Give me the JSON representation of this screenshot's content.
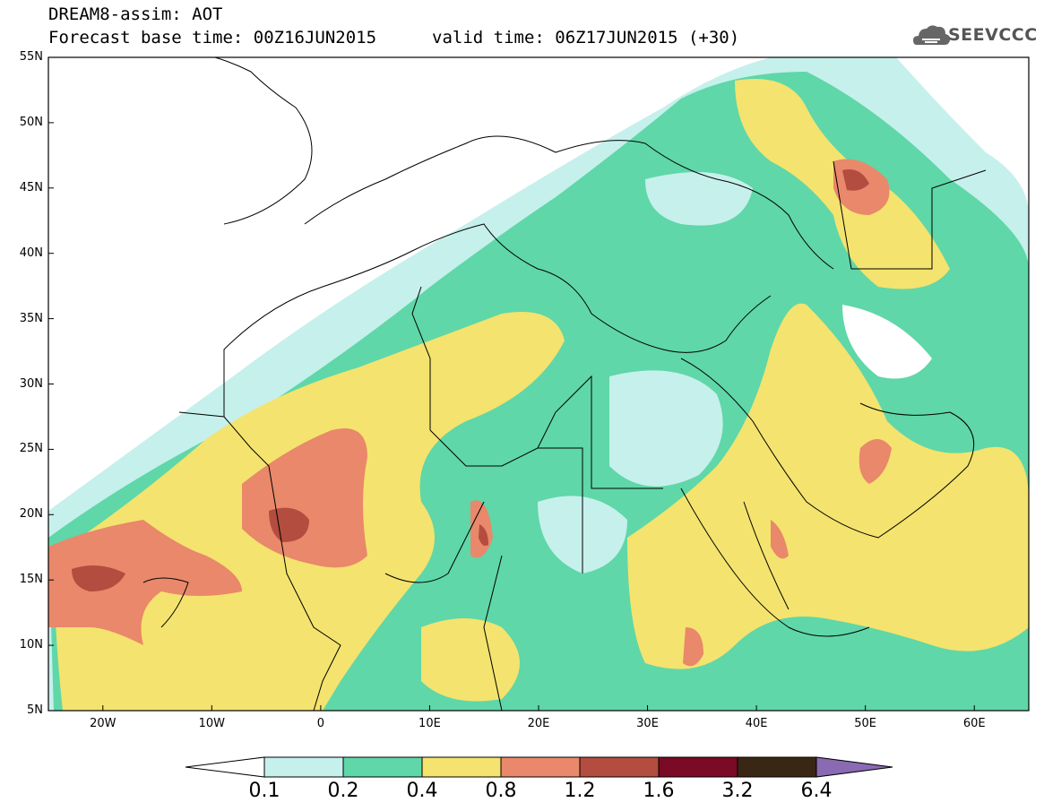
{
  "header": {
    "title": "DREAM8-assim: AOT",
    "base_time": "Forecast base time: 00Z16JUN2015",
    "valid_time": "valid time: 06Z17JUN2015 (+30)",
    "logo_text": "SEEVCCC"
  },
  "map": {
    "lat_labels": [
      "55N",
      "50N",
      "45N",
      "40N",
      "35N",
      "30N",
      "25N",
      "20N",
      "15N",
      "10N",
      "5N"
    ],
    "lon_labels": [
      "20W",
      "10W",
      "0",
      "10E",
      "20E",
      "30E",
      "40E",
      "50E",
      "60E"
    ],
    "lon_range": [
      -25,
      65
    ],
    "lat_range": [
      5,
      55
    ]
  },
  "colorbar": {
    "levels": [
      "0.1",
      "0.2",
      "0.4",
      "0.8",
      "1.2",
      "1.6",
      "3.2",
      "6.4"
    ],
    "colors": [
      "#ffffff",
      "#c6f0ec",
      "#5fd7a8",
      "#f4e36e",
      "#e9886a",
      "#b24d3f",
      "#7a0a26",
      "#3a2614",
      "#8a6ab3"
    ]
  }
}
